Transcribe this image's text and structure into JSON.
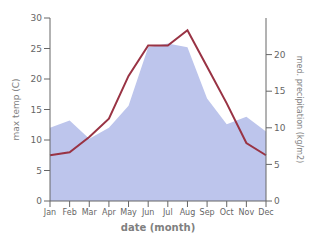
{
  "chart_data": {
    "type": "line",
    "categories": [
      "Jan",
      "Feb",
      "Mar",
      "Apr",
      "May",
      "Jun",
      "Jul",
      "Aug",
      "Sep",
      "Oct",
      "Nov",
      "Dec"
    ],
    "xlabel": "date (month)",
    "ylabel": "max temp (C)",
    "y2label": "med. precipitation (kg/m2)",
    "ylim": [
      0,
      30
    ],
    "yticks": [
      0,
      5,
      10,
      15,
      20,
      25,
      30
    ],
    "y2lim": [
      0,
      25
    ],
    "y2ticks": [
      0,
      5,
      10,
      15,
      20
    ],
    "grid": false,
    "series": [
      {
        "type": "area",
        "axis": "y2",
        "color": "#bdc5ec",
        "values": [
          10.0,
          11.0,
          8.5,
          10.0,
          13.0,
          21.0,
          21.5,
          21.0,
          14.0,
          10.5,
          11.5,
          9.5
        ]
      },
      {
        "type": "line",
        "axis": "y",
        "color": "#993344",
        "values": [
          7.5,
          8.0,
          10.5,
          13.5,
          20.5,
          25.5,
          25.5,
          28.0,
          22.0,
          16.0,
          9.5,
          7.5
        ]
      }
    ]
  }
}
